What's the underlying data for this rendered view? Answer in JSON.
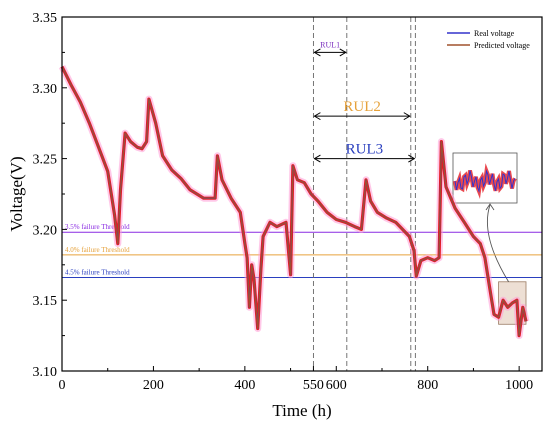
{
  "chart_data": {
    "type": "line",
    "xlabel": "Time (h)",
    "ylabel": "Voltage(V)",
    "xlim": [
      0,
      1050
    ],
    "ylim": [
      3.1,
      3.35
    ],
    "x_ticks": [
      0,
      200,
      400,
      600,
      800,
      1000
    ],
    "x_tick_labels": [
      "0",
      "200",
      "400",
      "600",
      "800",
      "1000"
    ],
    "extra_x_tick": {
      "value": 550,
      "label": "550"
    },
    "y_ticks": [
      3.1,
      3.15,
      3.2,
      3.25,
      3.3,
      3.35
    ],
    "y_tick_labels": [
      "3.10",
      "3.15",
      "3.20",
      "3.25",
      "3.30",
      "3.35"
    ],
    "legend_position": "top-right",
    "series": [
      {
        "name": "Real voltage",
        "color": "#3333cc",
        "points": [
          [
            0,
            3.315
          ],
          [
            20,
            3.302
          ],
          [
            40,
            3.29
          ],
          [
            60,
            3.275
          ],
          [
            80,
            3.258
          ],
          [
            100,
            3.241
          ],
          [
            115,
            3.21
          ],
          [
            122,
            3.19
          ],
          [
            128,
            3.228
          ],
          [
            138,
            3.268
          ],
          [
            150,
            3.262
          ],
          [
            165,
            3.258
          ],
          [
            175,
            3.257
          ],
          [
            185,
            3.262
          ],
          [
            190,
            3.292
          ],
          [
            205,
            3.275
          ],
          [
            220,
            3.252
          ],
          [
            240,
            3.242
          ],
          [
            260,
            3.236
          ],
          [
            280,
            3.228
          ],
          [
            310,
            3.222
          ],
          [
            335,
            3.222
          ],
          [
            340,
            3.252
          ],
          [
            350,
            3.235
          ],
          [
            370,
            3.222
          ],
          [
            390,
            3.212
          ],
          [
            400,
            3.19
          ],
          [
            405,
            3.18
          ],
          [
            410,
            3.145
          ],
          [
            415,
            3.175
          ],
          [
            420,
            3.165
          ],
          [
            428,
            3.13
          ],
          [
            435,
            3.172
          ],
          [
            440,
            3.195
          ],
          [
            455,
            3.205
          ],
          [
            470,
            3.202
          ],
          [
            490,
            3.205
          ],
          [
            500,
            3.168
          ],
          [
            505,
            3.245
          ],
          [
            515,
            3.235
          ],
          [
            530,
            3.233
          ],
          [
            545,
            3.225
          ],
          [
            560,
            3.22
          ],
          [
            580,
            3.212
          ],
          [
            600,
            3.207
          ],
          [
            620,
            3.205
          ],
          [
            640,
            3.202
          ],
          [
            655,
            3.2
          ],
          [
            665,
            3.235
          ],
          [
            675,
            3.22
          ],
          [
            690,
            3.212
          ],
          [
            710,
            3.208
          ],
          [
            730,
            3.205
          ],
          [
            745,
            3.2
          ],
          [
            760,
            3.195
          ],
          [
            770,
            3.185
          ],
          [
            775,
            3.167
          ],
          [
            785,
            3.178
          ],
          [
            800,
            3.18
          ],
          [
            815,
            3.178
          ],
          [
            825,
            3.18
          ],
          [
            830,
            3.262
          ],
          [
            840,
            3.23
          ],
          [
            860,
            3.215
          ],
          [
            880,
            3.205
          ],
          [
            900,
            3.195
          ],
          [
            915,
            3.19
          ],
          [
            925,
            3.18
          ],
          [
            935,
            3.16
          ],
          [
            945,
            3.14
          ],
          [
            955,
            3.138
          ],
          [
            965,
            3.15
          ],
          [
            975,
            3.145
          ],
          [
            985,
            3.148
          ],
          [
            995,
            3.15
          ],
          [
            1000,
            3.125
          ],
          [
            1008,
            3.145
          ],
          [
            1015,
            3.135
          ]
        ]
      },
      {
        "name": "Predicted voltage",
        "color": "#a0522d",
        "points": [
          [
            0,
            3.315
          ],
          [
            20,
            3.302
          ],
          [
            40,
            3.29
          ],
          [
            60,
            3.275
          ],
          [
            80,
            3.258
          ],
          [
            100,
            3.241
          ],
          [
            115,
            3.21
          ],
          [
            122,
            3.19
          ],
          [
            128,
            3.228
          ],
          [
            138,
            3.268
          ],
          [
            150,
            3.262
          ],
          [
            165,
            3.258
          ],
          [
            175,
            3.257
          ],
          [
            185,
            3.262
          ],
          [
            190,
            3.292
          ],
          [
            205,
            3.275
          ],
          [
            220,
            3.252
          ],
          [
            240,
            3.242
          ],
          [
            260,
            3.236
          ],
          [
            280,
            3.228
          ],
          [
            310,
            3.222
          ],
          [
            335,
            3.222
          ],
          [
            340,
            3.252
          ],
          [
            350,
            3.235
          ],
          [
            370,
            3.222
          ],
          [
            390,
            3.212
          ],
          [
            400,
            3.19
          ],
          [
            405,
            3.18
          ],
          [
            410,
            3.145
          ],
          [
            415,
            3.175
          ],
          [
            420,
            3.165
          ],
          [
            428,
            3.13
          ],
          [
            435,
            3.172
          ],
          [
            440,
            3.195
          ],
          [
            455,
            3.205
          ],
          [
            470,
            3.202
          ],
          [
            490,
            3.205
          ],
          [
            500,
            3.168
          ],
          [
            505,
            3.245
          ],
          [
            515,
            3.235
          ],
          [
            530,
            3.233
          ],
          [
            545,
            3.225
          ],
          [
            560,
            3.22
          ],
          [
            580,
            3.212
          ],
          [
            600,
            3.207
          ],
          [
            620,
            3.205
          ],
          [
            640,
            3.202
          ],
          [
            655,
            3.2
          ],
          [
            665,
            3.235
          ],
          [
            675,
            3.22
          ],
          [
            690,
            3.212
          ],
          [
            710,
            3.208
          ],
          [
            730,
            3.205
          ],
          [
            745,
            3.2
          ],
          [
            760,
            3.195
          ],
          [
            770,
            3.185
          ],
          [
            775,
            3.167
          ],
          [
            785,
            3.178
          ],
          [
            800,
            3.18
          ],
          [
            815,
            3.178
          ],
          [
            825,
            3.18
          ],
          [
            830,
            3.262
          ],
          [
            840,
            3.23
          ],
          [
            860,
            3.215
          ],
          [
            880,
            3.205
          ],
          [
            900,
            3.195
          ],
          [
            915,
            3.19
          ],
          [
            925,
            3.18
          ],
          [
            935,
            3.16
          ],
          [
            945,
            3.14
          ],
          [
            955,
            3.138
          ],
          [
            965,
            3.15
          ],
          [
            975,
            3.145
          ],
          [
            985,
            3.148
          ],
          [
            995,
            3.15
          ],
          [
            1000,
            3.125
          ],
          [
            1008,
            3.145
          ],
          [
            1015,
            3.135
          ]
        ]
      }
    ],
    "thresholds": [
      {
        "label": "3.5% failure Threshold",
        "value": 3.198,
        "color": "#8a2be2"
      },
      {
        "label": "4.0% failure Threshold",
        "value": 3.182,
        "color": "#e6a23c"
      },
      {
        "label": "4.5% failure Threshold",
        "value": 3.166,
        "color": "#2a3fbf"
      }
    ],
    "vertical_markers": [
      550,
      623,
      763,
      773
    ],
    "rul_spans": [
      {
        "label": "RUL1",
        "from": 550,
        "to": 623,
        "y": 3.325,
        "color": "#7b2fbe"
      },
      {
        "label": "RUL2",
        "from": 550,
        "to": 763,
        "y": 3.28,
        "color": "#e6a23c"
      },
      {
        "label": "RUL3",
        "from": 550,
        "to": 773,
        "y": 3.25,
        "color": "#2a3fbf"
      }
    ],
    "zoom_region": {
      "x": [
        955,
        1015
      ],
      "y": [
        3.133,
        3.163
      ]
    }
  }
}
